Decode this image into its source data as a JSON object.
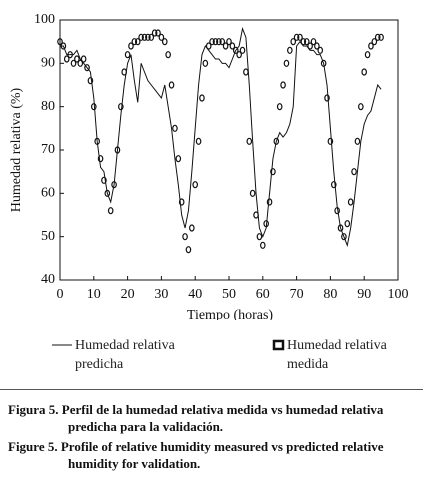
{
  "chart_data": {
    "type": "line",
    "x_label": "Tiempo (horas)",
    "y_label": "Humedad relativa (%)",
    "x": [
      0,
      1,
      2,
      3,
      4,
      5,
      6,
      7,
      8,
      9,
      10,
      11,
      12,
      13,
      14,
      15,
      16,
      17,
      18,
      19,
      20,
      21,
      22,
      23,
      24,
      25,
      26,
      27,
      28,
      29,
      30,
      31,
      32,
      33,
      34,
      35,
      36,
      37,
      38,
      39,
      40,
      41,
      42,
      43,
      44,
      45,
      46,
      47,
      48,
      49,
      50,
      51,
      52,
      53,
      54,
      55,
      56,
      57,
      58,
      59,
      60,
      61,
      62,
      63,
      64,
      65,
      66,
      67,
      68,
      69,
      70,
      71,
      72,
      73,
      74,
      75,
      76,
      77,
      78,
      79,
      80,
      81,
      82,
      83,
      84,
      85,
      86,
      87,
      88,
      89,
      90,
      91,
      92,
      93,
      94,
      95
    ],
    "series": [
      {
        "name": "Humedad relativa predicha",
        "style": "line",
        "color": "#111111",
        "values": [
          94,
          94,
          92,
          92,
          92,
          93,
          91,
          90,
          89,
          88,
          82,
          72,
          66,
          65,
          60,
          58,
          62,
          70,
          78,
          85,
          90,
          92,
          86,
          81,
          90,
          88,
          86,
          85,
          84,
          83,
          82,
          85,
          80,
          75,
          68,
          62,
          55,
          52,
          56,
          65,
          75,
          85,
          92,
          94,
          93,
          92,
          91,
          91,
          90,
          90,
          89,
          91,
          93,
          94,
          98,
          96,
          85,
          72,
          60,
          52,
          50,
          52,
          60,
          68,
          72,
          74,
          73,
          74,
          76,
          80,
          94,
          95,
          94,
          94,
          93,
          93,
          92,
          92,
          90,
          85,
          75,
          65,
          57,
          52,
          50,
          48,
          52,
          58,
          65,
          72,
          76,
          78,
          79,
          82,
          85,
          84
        ]
      },
      {
        "name": "Humedad relativa medida",
        "style": "markers",
        "color": "#111111",
        "values": [
          95,
          94,
          91,
          92,
          90,
          91,
          90,
          91,
          89,
          86,
          80,
          72,
          68,
          63,
          60,
          56,
          62,
          70,
          80,
          88,
          92,
          94,
          95,
          95,
          96,
          96,
          96,
          96,
          97,
          97,
          96,
          95,
          92,
          85,
          75,
          68,
          58,
          50,
          47,
          52,
          62,
          72,
          82,
          90,
          94,
          95,
          95,
          95,
          95,
          94,
          95,
          94,
          93,
          92,
          93,
          88,
          72,
          60,
          55,
          50,
          48,
          53,
          58,
          65,
          72,
          80,
          85,
          90,
          93,
          95,
          96,
          96,
          95,
          95,
          94,
          95,
          94,
          93,
          90,
          82,
          72,
          62,
          56,
          52,
          50,
          53,
          58,
          65,
          72,
          80,
          88,
          92,
          94,
          95,
          96,
          96
        ]
      }
    ],
    "xlim": [
      0,
      100
    ],
    "xticks": [
      0,
      10,
      20,
      30,
      40,
      50,
      60,
      70,
      80,
      90,
      100
    ],
    "ylim": [
      40,
      100
    ],
    "yticks": [
      40,
      50,
      60,
      70,
      80,
      90,
      100
    ]
  },
  "caption": {
    "es": "Figura 5. Perfil de la humedad relativa medida vs humedad relativa predicha para la validación.",
    "en": "Figure 5. Profile of relative humidity measured vs predicted relative humidity for validation."
  }
}
